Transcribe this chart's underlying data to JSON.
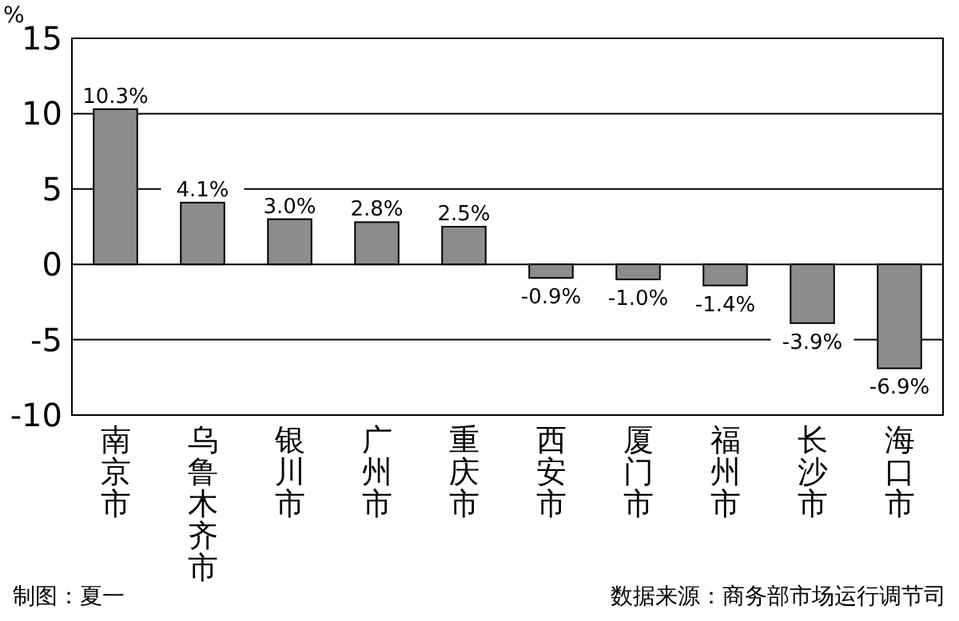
{
  "chart_data": {
    "type": "bar",
    "ylabel": "%",
    "categories": [
      "南京市",
      "乌鲁木齐市",
      "银川市",
      "广州市",
      "重庆市",
      "西安市",
      "厦门市",
      "福州市",
      "长沙市",
      "海口市"
    ],
    "values": [
      10.3,
      4.1,
      3.0,
      2.8,
      2.5,
      -0.9,
      -1.0,
      -1.4,
      -3.9,
      -6.9
    ],
    "value_labels": [
      "10.3%",
      "4.1%",
      "3.0%",
      "2.8%",
      "2.5%",
      "-0.9%",
      "-1.0%",
      "-1.4%",
      "-3.9%",
      "-6.9%"
    ],
    "color": "#8c8c8c",
    "ylim": [
      -10,
      15
    ],
    "yticks": [
      -10,
      -5,
      0,
      5,
      10,
      15
    ],
    "grid": "y",
    "annotations": [
      "制图：夏一",
      "数据来源：商务部市场运行调节司"
    ]
  }
}
